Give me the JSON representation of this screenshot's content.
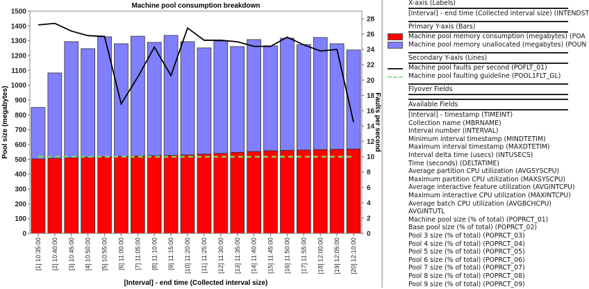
{
  "chart_data": {
    "type": "bar",
    "title": "Machine pool consumption breakdown",
    "xlabel": "[Interval] - end time (Collected interval size)",
    "ylabel": "Pool size (megabytes)",
    "y2label": "Faults per second",
    "ylim": [
      0,
      1500
    ],
    "y2lim": [
      0,
      29
    ],
    "yticks": [
      0,
      100,
      200,
      300,
      400,
      500,
      600,
      700,
      800,
      900,
      1000,
      1100,
      1200,
      1300,
      1400,
      1500
    ],
    "y2ticks": [
      0,
      2,
      4,
      6,
      8,
      10,
      12,
      14,
      16,
      18,
      20,
      22,
      24,
      26,
      28
    ],
    "stacked": true,
    "categories": [
      "[1] 10:35:00",
      "[2] 10:40:00",
      "[3] 10:45:00",
      "[4] 10:50:00",
      "[5] 10:55:00",
      "[6] 11:00:00",
      "[7] 11:05:00",
      "[8] 11:10:00",
      "[9] 11:15:00",
      "[10] 11:20:00",
      "[11] 11:25:00",
      "[12] 11:30:00",
      "[13] 11:35:00",
      "[14] 11:40:00",
      "[15] 11:45:00",
      "[16] 11:50:00",
      "[17] 11:55:00",
      "[18] 12:00:00",
      "[19] 12:05:00",
      "[20] 12:10:00"
    ],
    "series": [
      {
        "name": "Machine pool memory consumption (megabytes) (POA",
        "kind": "bar",
        "axis": "primary",
        "color": "#ff0000",
        "values": [
          503,
          507,
          511,
          513,
          517,
          520,
          523,
          525,
          527,
          530,
          535,
          540,
          547,
          553,
          558,
          561,
          563,
          566,
          568,
          570
        ]
      },
      {
        "name": "Machine pool memory unallocated (megabytes) (POUN",
        "kind": "bar",
        "axis": "primary",
        "color": "#8080ff",
        "values": [
          347,
          576,
          783,
          734,
          810,
          760,
          808,
          764,
          809,
          764,
          717,
          758,
          714,
          755,
          708,
          756,
          712,
          756,
          712,
          668
        ]
      },
      {
        "name": "Machine pool faults per second (POFLT_01)",
        "kind": "line",
        "axis": "secondary",
        "color": "#000000",
        "values": [
          27.2,
          27.4,
          26.4,
          25.8,
          25.7,
          16.9,
          20.4,
          24.3,
          20.6,
          26.8,
          25.2,
          25.2,
          25.0,
          24.4,
          24.4,
          25.6,
          24.6,
          23.8,
          24.0,
          14.5
        ]
      },
      {
        "name": "Machine pool faulting guideline (POOL1FLT_GL)",
        "kind": "line",
        "axis": "secondary",
        "color": "#7ed957",
        "dashed": true,
        "values": [
          10,
          10,
          10,
          10,
          10,
          10,
          10,
          10,
          10,
          10,
          10,
          10,
          10,
          10,
          10,
          10,
          10,
          10,
          10,
          10
        ]
      }
    ],
    "grid": false,
    "legend": "right"
  },
  "panel": {
    "xaxis_header": "X-axis (Labels)",
    "xaxis_field": "[Interval] - end time (Collected interval size) (INTENDST",
    "primary_header": "Primary Y-axis (Bars)",
    "primary_fields": [
      {
        "label": "Machine pool memory consumption (megabytes) (POA",
        "color": "#ff0000"
      },
      {
        "label": "Machine pool memory unallocated (megabytes) (POUN",
        "color": "#8080ff"
      }
    ],
    "secondary_header": "Secondary Y-axis (Lines)",
    "secondary_fields": [
      {
        "label": "Machine pool faults per second (POFLT_01)",
        "color": "#222222"
      },
      {
        "label": "Machine pool faulting guideline (POOL1FLT_GL)",
        "color": "#90e090"
      }
    ],
    "flyover_header": "Flyover Fields",
    "available_header": "Available Fields",
    "available_fields": [
      "[Interval] - timestamp (TIMEINT)",
      "Collection name (MBRNAME)",
      "Interval number (INTERVAL)",
      "Minimum interval timestamp (MINDTETIM)",
      "Maximum interval timestamp (MAXDTETIM)",
      "Interval delta time (usecs) (INTUSECS)",
      "Time (seconds) (DELTATIME)",
      "Average partition CPU utilization (AVGSYSCPU)",
      "Maximum partition CPU utilization (MAXSYSCPU)",
      "Average interactive feature utilization (AVGINTCPU)",
      "Maximum interactive CPU utilization (MAXINTCPU)",
      "Average batch CPU utilization (AVGBCHCPU)",
      "AVGINTUTL",
      "Machine pool size (% of total) (POPRCT_01)",
      "Base pool size (% of total) (POPRCT_02)",
      "Pool 3 size (% of total) (POPRCT_03)",
      "Pool 4 size (% of total) (POPRCT_04)",
      "Pool 5 size (% of total) (POPRCT_05)",
      "Pool 6 size (% of total) (POPRCT_06)",
      "Pool 7 size (% of total) (POPRCT_07)",
      "Pool 8 size (% of total) (POPRCT_08)",
      "Pool 9 size (% of total) (POPRCT_09)"
    ]
  }
}
